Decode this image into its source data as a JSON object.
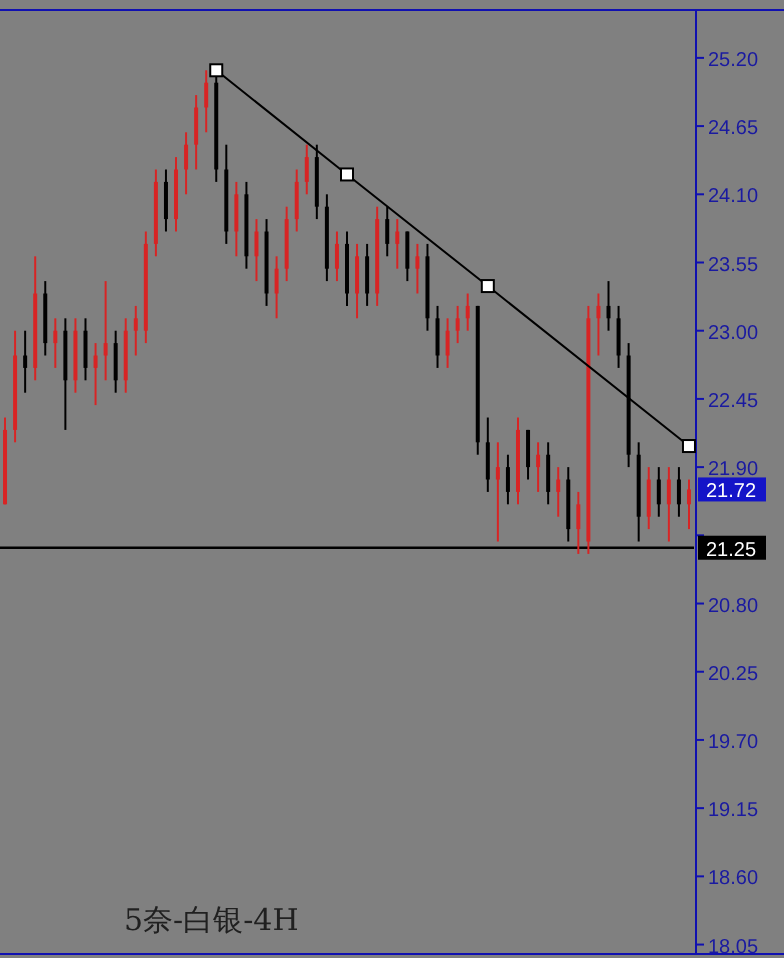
{
  "chart_data": {
    "type": "candlestick",
    "title": "5奈-白银-4H",
    "categories": [
      null,
      null,
      null,
      null,
      null,
      null,
      null,
      null,
      null,
      null,
      null,
      null,
      null,
      null,
      null,
      null,
      null,
      null,
      null,
      null,
      null,
      null,
      null,
      null,
      null,
      null,
      null,
      null,
      null,
      null,
      null,
      null,
      null,
      null,
      null,
      null,
      null,
      null,
      null,
      null,
      null,
      null,
      null,
      null,
      null,
      null,
      null,
      null,
      null,
      null,
      null,
      null,
      null,
      null,
      null,
      null,
      null,
      null,
      null,
      null,
      null,
      null,
      null,
      null,
      null,
      null,
      null,
      null,
      null
    ],
    "ohlc": [
      [
        21.6,
        22.3,
        21.6,
        22.2
      ],
      [
        22.2,
        23.0,
        22.1,
        22.8
      ],
      [
        22.8,
        23.0,
        22.5,
        22.7
      ],
      [
        22.7,
        23.6,
        22.6,
        23.3
      ],
      [
        23.3,
        23.4,
        22.8,
        22.9
      ],
      [
        22.9,
        23.1,
        22.7,
        23.0
      ],
      [
        23.0,
        23.1,
        22.2,
        22.6
      ],
      [
        22.6,
        23.1,
        22.5,
        23.0
      ],
      [
        23.0,
        23.1,
        22.6,
        22.7
      ],
      [
        22.7,
        22.9,
        22.4,
        22.8
      ],
      [
        22.8,
        23.4,
        22.6,
        22.9
      ],
      [
        22.9,
        23.0,
        22.5,
        22.6
      ],
      [
        22.6,
        23.1,
        22.5,
        23.0
      ],
      [
        23.0,
        23.2,
        22.8,
        23.1
      ],
      [
        23.0,
        23.8,
        22.9,
        23.7
      ],
      [
        23.7,
        24.3,
        23.6,
        24.2
      ],
      [
        24.2,
        24.3,
        23.8,
        23.9
      ],
      [
        23.9,
        24.4,
        23.8,
        24.3
      ],
      [
        24.3,
        24.6,
        24.1,
        24.5
      ],
      [
        24.5,
        24.9,
        24.3,
        24.8
      ],
      [
        24.8,
        25.1,
        24.6,
        25.0
      ],
      [
        25.0,
        25.1,
        24.2,
        24.3
      ],
      [
        24.3,
        24.5,
        23.7,
        23.8
      ],
      [
        23.8,
        24.2,
        23.6,
        24.1
      ],
      [
        24.1,
        24.2,
        23.5,
        23.6
      ],
      [
        23.6,
        23.9,
        23.4,
        23.8
      ],
      [
        23.8,
        23.9,
        23.2,
        23.3
      ],
      [
        23.3,
        23.6,
        23.1,
        23.5
      ],
      [
        23.5,
        24.0,
        23.4,
        23.9
      ],
      [
        23.9,
        24.3,
        23.8,
        24.2
      ],
      [
        24.2,
        24.5,
        24.1,
        24.4
      ],
      [
        24.4,
        24.5,
        23.9,
        24.0
      ],
      [
        24.0,
        24.1,
        23.4,
        23.5
      ],
      [
        23.5,
        23.8,
        23.4,
        23.7
      ],
      [
        23.7,
        23.8,
        23.2,
        23.3
      ],
      [
        23.3,
        23.7,
        23.1,
        23.6
      ],
      [
        23.6,
        23.7,
        23.2,
        23.3
      ],
      [
        23.3,
        24.0,
        23.2,
        23.9
      ],
      [
        23.9,
        24.0,
        23.6,
        23.7
      ],
      [
        23.7,
        23.9,
        23.5,
        23.8
      ],
      [
        23.8,
        23.8,
        23.4,
        23.5
      ],
      [
        23.5,
        23.7,
        23.3,
        23.6
      ],
      [
        23.6,
        23.7,
        23.0,
        23.1
      ],
      [
        23.1,
        23.2,
        22.7,
        22.8
      ],
      [
        22.8,
        23.1,
        22.7,
        23.0
      ],
      [
        23.0,
        23.2,
        22.9,
        23.1
      ],
      [
        23.1,
        23.3,
        23.0,
        23.2
      ],
      [
        23.2,
        23.2,
        22.0,
        22.1
      ],
      [
        22.1,
        22.3,
        21.7,
        21.8
      ],
      [
        21.8,
        22.1,
        21.3,
        21.9
      ],
      [
        21.9,
        22.0,
        21.6,
        21.7
      ],
      [
        21.7,
        22.3,
        21.6,
        22.2
      ],
      [
        22.2,
        22.2,
        21.8,
        21.9
      ],
      [
        21.9,
        22.1,
        21.7,
        22.0
      ],
      [
        22.0,
        22.1,
        21.6,
        21.7
      ],
      [
        21.7,
        21.9,
        21.5,
        21.8
      ],
      [
        21.8,
        21.9,
        21.3,
        21.4
      ],
      [
        21.4,
        21.7,
        21.2,
        21.6
      ],
      [
        21.3,
        23.2,
        21.2,
        23.1
      ],
      [
        23.1,
        23.3,
        22.8,
        23.2
      ],
      [
        23.2,
        23.4,
        23.0,
        23.1
      ],
      [
        23.1,
        23.2,
        22.7,
        22.8
      ],
      [
        22.8,
        22.9,
        21.9,
        22.0
      ],
      [
        22.0,
        22.1,
        21.3,
        21.5
      ],
      [
        21.5,
        21.9,
        21.4,
        21.8
      ],
      [
        21.8,
        21.9,
        21.5,
        21.6
      ],
      [
        21.6,
        21.9,
        21.3,
        21.8
      ],
      [
        21.8,
        21.9,
        21.5,
        21.6
      ],
      [
        21.6,
        21.8,
        21.4,
        21.72
      ]
    ],
    "colors": [
      "#d82424",
      "#d82424",
      "#000000",
      "#d82424",
      "#000000",
      "#d82424",
      "#000000",
      "#d82424",
      "#000000",
      "#d82424",
      "#d82424",
      "#000000",
      "#d82424",
      "#d82424",
      "#d82424",
      "#d82424",
      "#000000",
      "#d82424",
      "#d82424",
      "#d82424",
      "#d82424",
      "#000000",
      "#000000",
      "#d82424",
      "#000000",
      "#d82424",
      "#000000",
      "#d82424",
      "#d82424",
      "#d82424",
      "#d82424",
      "#000000",
      "#000000",
      "#d82424",
      "#000000",
      "#d82424",
      "#000000",
      "#d82424",
      "#000000",
      "#d82424",
      "#000000",
      "#d82424",
      "#000000",
      "#000000",
      "#d82424",
      "#d82424",
      "#d82424",
      "#000000",
      "#000000",
      "#d82424",
      "#000000",
      "#d82424",
      "#000000",
      "#d82424",
      "#000000",
      "#d82424",
      "#000000",
      "#d82424",
      "#d82424",
      "#d82424",
      "#000000",
      "#000000",
      "#000000",
      "#000000",
      "#d82424",
      "#000000",
      "#d82424",
      "#000000",
      "#d82424"
    ],
    "series": [
      {
        "type": "line",
        "color": "#000000",
        "marker": "square",
        "values": [
          null,
          null,
          null,
          null,
          null,
          null,
          null,
          null,
          null,
          null,
          null,
          null,
          null,
          null,
          null,
          null,
          null,
          null,
          null,
          null,
          null,
          25.1,
          null,
          null,
          null,
          null,
          null,
          null,
          null,
          null,
          null,
          null,
          null,
          null,
          24.26,
          null,
          null,
          null,
          null,
          null,
          null,
          null,
          null,
          null,
          null,
          null,
          null,
          null,
          23.36,
          null,
          null,
          null,
          null,
          null,
          null,
          null,
          null,
          null,
          null,
          null,
          null,
          null,
          null,
          null,
          null,
          null,
          null,
          null,
          22.07
        ]
      }
    ],
    "ylim": [
      17.99,
      25.57
    ],
    "yticks": [
      {
        "value": 25.2,
        "label": "25.20"
      },
      {
        "value": 24.65,
        "label": "24.65"
      },
      {
        "value": 24.1,
        "label": "24.10"
      },
      {
        "value": 23.55,
        "label": "23.55"
      },
      {
        "value": 23.0,
        "label": "23.00"
      },
      {
        "value": 22.45,
        "label": "22.45"
      },
      {
        "value": 21.9,
        "label": "21.90"
      },
      {
        "value": 21.35,
        "label": null
      },
      {
        "value": 20.8,
        "label": "20.80"
      },
      {
        "value": 20.25,
        "label": "20.25"
      },
      {
        "value": 19.7,
        "label": "19.70"
      },
      {
        "value": 19.15,
        "label": "19.15"
      },
      {
        "value": 18.6,
        "label": "18.60"
      },
      {
        "value": 18.05,
        "label": "18.05"
      }
    ],
    "ref_lines": [
      {
        "axis": "y",
        "value": 21.25,
        "label": "21.25",
        "color": "#000000"
      }
    ],
    "annotations": [
      {
        "text": "21.72",
        "y": 21.72
      }
    ],
    "grid": false
  }
}
